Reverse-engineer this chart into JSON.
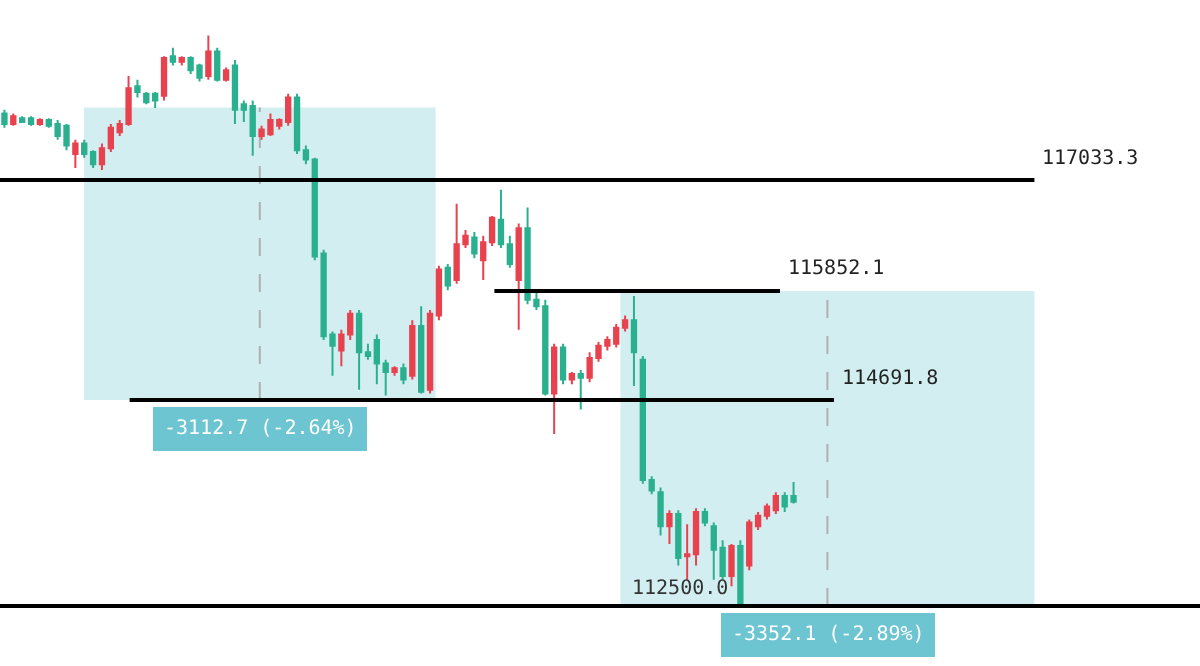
{
  "chart_data": {
    "type": "candlestick",
    "categories": [
      null,
      null,
      null,
      null,
      null,
      null,
      null,
      null,
      null,
      null,
      null,
      null,
      null,
      null,
      null,
      null,
      null,
      null,
      null,
      null,
      null,
      null,
      null,
      null,
      null,
      null,
      null,
      null,
      null,
      null,
      null,
      null,
      null,
      null,
      null,
      null,
      null,
      null,
      null,
      null,
      null,
      null,
      null,
      null,
      null,
      null,
      null,
      null,
      null,
      null,
      null,
      null,
      null,
      null,
      null,
      null,
      null,
      null,
      null,
      null,
      null,
      null,
      null,
      null,
      null,
      null,
      null,
      null,
      null,
      null,
      null,
      null,
      null,
      null,
      null,
      null,
      null,
      null,
      null,
      null,
      null,
      null,
      null,
      null,
      null,
      null,
      null,
      null,
      null,
      null
    ],
    "ohlc": [
      [
        117740,
        117780,
        117590,
        117630
      ],
      [
        117630,
        117740,
        117610,
        117710
      ],
      [
        117690,
        117710,
        117650,
        117650
      ],
      [
        117690,
        117710,
        117610,
        117630
      ],
      [
        117630,
        117690,
        117610,
        117670
      ],
      [
        117670,
        117690,
        117590,
        117610
      ],
      [
        117630,
        117670,
        117460,
        117500
      ],
      [
        117610,
        117630,
        117350,
        117400
      ],
      [
        117310,
        117460,
        117160,
        117420
      ],
      [
        117420,
        117460,
        117270,
        117310
      ],
      [
        117330,
        117350,
        117160,
        117200
      ],
      [
        117200,
        117420,
        117140,
        117370
      ],
      [
        117370,
        117630,
        117330,
        117590
      ],
      [
        117540,
        117670,
        117500,
        117630
      ],
      [
        117630,
        118140,
        117610,
        118010
      ],
      [
        118030,
        118100,
        117910,
        117970
      ],
      [
        117950,
        117970,
        117840,
        117860
      ],
      [
        117950,
        117970,
        117800,
        117880
      ],
      [
        117930,
        118350,
        117880,
        118330
      ],
      [
        118350,
        118440,
        118250,
        118290
      ],
      [
        118290,
        118350,
        118250,
        118330
      ],
      [
        118330,
        118350,
        118160,
        118200
      ],
      [
        118250,
        118270,
        118080,
        118120
      ],
      [
        118140,
        118570,
        118100,
        118400
      ],
      [
        118400,
        118440,
        118080,
        118100
      ],
      [
        118100,
        118230,
        118080,
        118200
      ],
      [
        118250,
        118310,
        117630,
        117780
      ],
      [
        117840,
        117880,
        117650,
        117780
      ],
      [
        117820,
        117880,
        117290,
        117500
      ],
      [
        117500,
        117610,
        117460,
        117570
      ],
      [
        117520,
        117740,
        117500,
        117670
      ],
      [
        117610,
        117690,
        117570,
        117670
      ],
      [
        117650,
        117950,
        117610,
        117910
      ],
      [
        117910,
        117950,
        117310,
        117350
      ],
      [
        117350,
        117400,
        117200,
        117250
      ],
      [
        117250,
        117270,
        116180,
        116220
      ],
      [
        116250,
        116290,
        115330,
        115370
      ],
      [
        115390,
        115420,
        114950,
        115270
      ],
      [
        115220,
        115440,
        115050,
        115390
      ],
      [
        115390,
        115650,
        115330,
        115610
      ],
      [
        115610,
        115650,
        114800,
        115200
      ],
      [
        115200,
        115290,
        115120,
        115160
      ],
      [
        115330,
        115390,
        114860,
        115080
      ],
      [
        115080,
        115120,
        114740,
        114990
      ],
      [
        114990,
        115050,
        114950,
        115030
      ],
      [
        115030,
        115080,
        114860,
        114910
      ],
      [
        114950,
        115540,
        114910,
        115480
      ],
      [
        115480,
        115690,
        114760,
        114780
      ],
      [
        114800,
        115650,
        114760,
        115610
      ],
      [
        115590,
        116120,
        115540,
        116080
      ],
      [
        116100,
        116140,
        115860,
        115910
      ],
      [
        115970,
        116780,
        115930,
        116350
      ],
      [
        116350,
        116500,
        116310,
        116440
      ],
      [
        116420,
        116480,
        116200,
        116250
      ],
      [
        116180,
        116440,
        115970,
        116370
      ],
      [
        116370,
        116650,
        116330,
        116630
      ],
      [
        116610,
        116930,
        116310,
        116350
      ],
      [
        116350,
        116440,
        116100,
        116140
      ],
      [
        115970,
        116570,
        115440,
        116520
      ],
      [
        116520,
        116740,
        115710,
        115760
      ],
      [
        115760,
        115840,
        115650,
        115690
      ],
      [
        115690,
        115760,
        114740,
        114760
      ],
      [
        114760,
        115290,
        114330,
        115250
      ],
      [
        115250,
        115290,
        114860,
        114910
      ],
      [
        114910,
        114990,
        114860,
        114970
      ],
      [
        114970,
        115010,
        114590,
        114930
      ],
      [
        114930,
        115200,
        114880,
        115140
      ],
      [
        115140,
        115310,
        115100,
        115270
      ],
      [
        115270,
        115370,
        115220,
        115330
      ],
      [
        115290,
        115500,
        115250,
        115460
      ],
      [
        115460,
        115590,
        115420,
        115540
      ],
      [
        115540,
        115800,
        114840,
        115200
      ],
      [
        115120,
        115160,
        113800,
        113840
      ],
      [
        113840,
        113880,
        113690,
        113730
      ],
      [
        113710,
        113760,
        113250,
        113350
      ],
      [
        113350,
        113520,
        113160,
        113480
      ],
      [
        113480,
        113520,
        112930,
        113010
      ],
      [
        113030,
        113370,
        112780,
        113050
      ],
      [
        113050,
        113540,
        112930,
        113500
      ],
      [
        113500,
        113540,
        113350,
        113390
      ],
      [
        113350,
        113390,
        112780,
        113100
      ],
      [
        113120,
        113200,
        112780,
        112820
      ],
      [
        112820,
        113160,
        112710,
        113140
      ],
      [
        113140,
        113200,
        112500,
        112520
      ],
      [
        112930,
        113420,
        112880,
        113390
      ],
      [
        113350,
        113500,
        113310,
        113460
      ],
      [
        113460,
        113590,
        113420,
        113560
      ],
      [
        113520,
        113710,
        113480,
        113670
      ],
      [
        113670,
        113710,
        113500,
        113560
      ],
      [
        113670,
        113820,
        113590,
        113610
      ]
    ],
    "colors": [
      "#2bb08f",
      "#e8424f",
      "#2bb08f",
      "#2bb08f",
      "#e8424f",
      "#2bb08f",
      "#2bb08f",
      "#2bb08f",
      "#e8424f",
      "#2bb08f",
      "#2bb08f",
      "#e8424f",
      "#e8424f",
      "#e8424f",
      "#e8424f",
      "#2bb08f",
      "#2bb08f",
      "#2bb08f",
      "#e8424f",
      "#2bb08f",
      "#e8424f",
      "#2bb08f",
      "#2bb08f",
      "#e8424f",
      "#2bb08f",
      "#e8424f",
      "#2bb08f",
      "#2bb08f",
      "#2bb08f",
      "#e8424f",
      "#e8424f",
      "#e8424f",
      "#e8424f",
      "#2bb08f",
      "#2bb08f",
      "#2bb08f",
      "#2bb08f",
      "#2bb08f",
      "#e8424f",
      "#e8424f",
      "#2bb08f",
      "#2bb08f",
      "#2bb08f",
      "#2bb08f",
      "#e8424f",
      "#2bb08f",
      "#e8424f",
      "#2bb08f",
      "#e8424f",
      "#e8424f",
      "#2bb08f",
      "#e8424f",
      "#e8424f",
      "#2bb08f",
      "#e8424f",
      "#e8424f",
      "#2bb08f",
      "#2bb08f",
      "#e8424f",
      "#2bb08f",
      "#2bb08f",
      "#2bb08f",
      "#e8424f",
      "#2bb08f",
      "#e8424f",
      "#2bb08f",
      "#e8424f",
      "#e8424f",
      "#e8424f",
      "#e8424f",
      "#e8424f",
      "#2bb08f",
      "#2bb08f",
      "#2bb08f",
      "#2bb08f",
      "#e8424f",
      "#2bb08f",
      "#e8424f",
      "#e8424f",
      "#2bb08f",
      "#2bb08f",
      "#2bb08f",
      "#e8424f",
      "#2bb08f",
      "#e8424f",
      "#e8424f",
      "#e8424f",
      "#e8424f",
      "#2bb08f",
      "#2bb08f"
    ],
    "ylim": [
      111862,
      118948
    ],
    "tick_labels": false,
    "grid": false,
    "legend": false,
    "ref_lines": [
      {
        "axis": "y",
        "value": 117033.3,
        "label": "117033.3",
        "color": "#000000"
      },
      {
        "axis": "y",
        "value": 115852.1,
        "label": "115852.1",
        "color": "#000000"
      },
      {
        "axis": "y",
        "value": 114691.8,
        "label": "114691.8",
        "color": "#000000"
      },
      {
        "axis": "y",
        "value": 112500.0,
        "color": "#000000"
      }
    ],
    "bands": [
      {
        "axis": "y",
        "from": 114691.8,
        "to": 117804.5,
        "label": "-3112.7 (-2.64%)",
        "color": "#d3eef1"
      },
      {
        "axis": "y",
        "from": 112500.0,
        "to": 115852.1,
        "label": "-3352.1 (-2.89%)",
        "color": "#d3eef1"
      }
    ],
    "annotations": [
      "112500.0"
    ]
  }
}
